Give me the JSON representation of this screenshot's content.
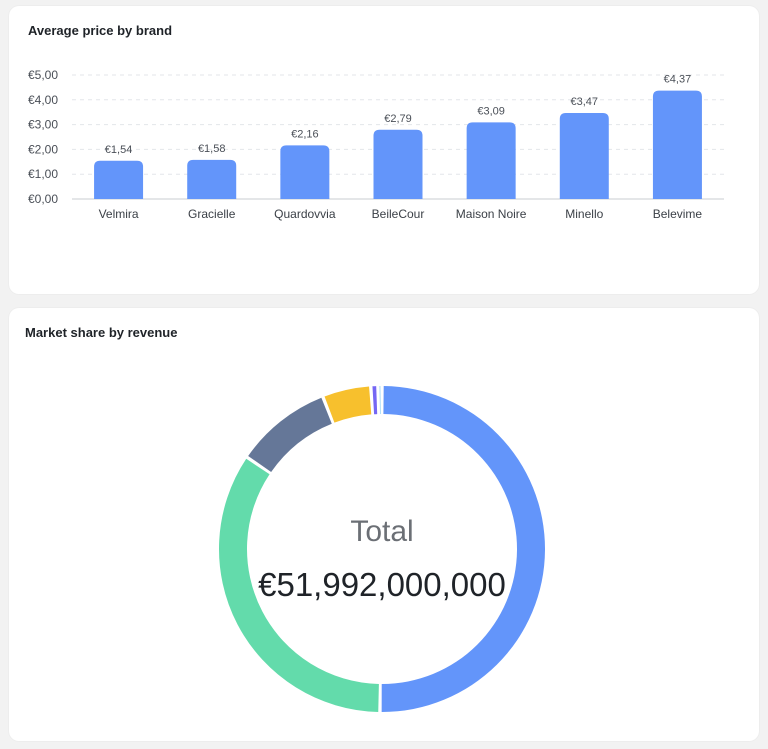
{
  "cards": {
    "bar_title": "Average price by brand",
    "donut_title": "Market share by revenue"
  },
  "donut_center": {
    "label": "Total",
    "value": "€51,992,000,000"
  },
  "colors": {
    "bar": "#6395fa",
    "donut": [
      "#6395fa",
      "#63dbab",
      "#657798",
      "#f7c02d",
      "#7567f4",
      "#7ccaf0"
    ]
  },
  "chart_data": [
    {
      "type": "bar",
      "title": "Average price by brand",
      "categories": [
        "Velmira",
        "Gracielle",
        "Quardovvia",
        "BeileCour",
        "Maison Noire",
        "Minello",
        "Belevime"
      ],
      "values": [
        1.54,
        1.58,
        2.16,
        2.79,
        3.09,
        3.47,
        4.37
      ],
      "value_labels": [
        "€1,54",
        "€1,58",
        "€2,16",
        "€2,79",
        "€3,09",
        "€3,47",
        "€4,37"
      ],
      "ylim": [
        0,
        5
      ],
      "yticks": [
        0,
        1,
        2,
        3,
        4,
        5
      ],
      "ytick_labels": [
        "€0,00",
        "€1,00",
        "€2,00",
        "€3,00",
        "€4,00",
        "€5,00"
      ],
      "grid": true,
      "xlabel": "",
      "ylabel": ""
    },
    {
      "type": "pie",
      "title": "Market share by revenue",
      "donut": true,
      "values": [
        50.2,
        34.3,
        9.6,
        4.8,
        0.7,
        0.4
      ],
      "center_label": "Total",
      "center_value": "€51,992,000,000"
    }
  ]
}
